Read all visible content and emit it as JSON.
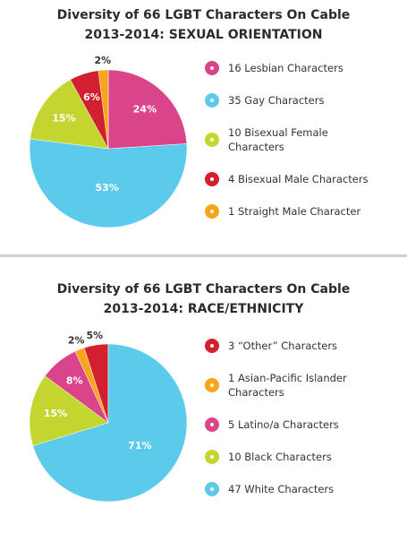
{
  "chart_data": [
    {
      "type": "pie",
      "title": "Diversity of 66 LGBT Characters On Cable",
      "subtitle": "2013-2014: SEXUAL ORIENTATION",
      "categories": [
        "16 Lesbian Characters",
        "35 Gay Characters",
        "10 Bisexual Female Characters",
        "4 Bisexual Male Characters",
        "1 Straight Male Character"
      ],
      "values": [
        24,
        53,
        15,
        6,
        2
      ],
      "value_labels": [
        "24%",
        "53%",
        "15%",
        "6%",
        "2%"
      ],
      "colors": [
        "#d9448b",
        "#5ccbeb",
        "#c3d62f",
        "#d2202e",
        "#f9a51b"
      ],
      "direction": "clockwise"
    },
    {
      "type": "pie",
      "title": "Diversity of 66 LGBT Characters On Cable",
      "subtitle": "2013-2014: RACE/ETHNICITY",
      "categories": [
        "3 “Other” Characters",
        "1 Asian-Pacific Islander Characters",
        "5 Latino/a Characters",
        "10 Black Characters",
        "47 White Characters"
      ],
      "values": [
        5,
        2,
        8,
        15,
        71
      ],
      "value_labels": [
        "5%",
        "2%",
        "8%",
        "15%",
        "71%"
      ],
      "colors": [
        "#d2202e",
        "#f9a51b",
        "#d9448b",
        "#c3d62f",
        "#5ccbeb"
      ],
      "direction": "counterclockwise"
    }
  ]
}
